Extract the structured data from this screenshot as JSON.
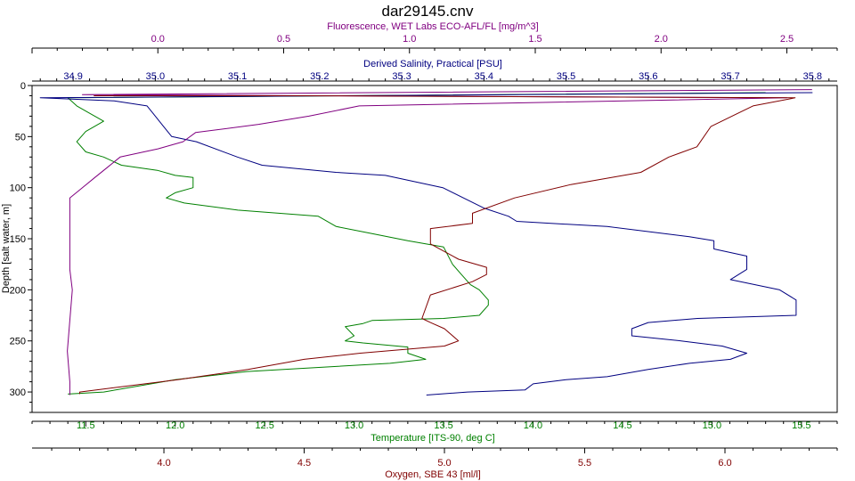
{
  "chart_data": {
    "type": "line",
    "title": "dar29145.cnv",
    "ylabel": "Depth [salt water, m]",
    "ylim": [
      0,
      320
    ],
    "yticks": [
      0,
      50,
      100,
      150,
      200,
      250,
      300
    ],
    "axes": {
      "fluorescence": {
        "label": "Fluorescence, WET Labs ECO-AFL/FL [mg/m^3]",
        "range": [
          -0.5,
          2.7
        ],
        "ticks": [
          "0.0",
          "0.5",
          "1.0",
          "1.5",
          "2.0",
          "2.5"
        ],
        "color": "#800080"
      },
      "salinity": {
        "label": "Derived Salinity, Practical [PSU]",
        "range": [
          34.85,
          35.83
        ],
        "ticks": [
          "34.9",
          "35.0",
          "35.1",
          "35.2",
          "35.3",
          "35.4",
          "35.5",
          "35.6",
          "35.7",
          "35.8"
        ],
        "color": "#000080"
      },
      "temperature": {
        "label": "Temperature [ITS-90, deg C]",
        "range": [
          11.2,
          15.7
        ],
        "ticks": [
          "11.5",
          "12.0",
          "12.5",
          "13.0",
          "13.5",
          "14.0",
          "14.5",
          "15.0",
          "15.5"
        ],
        "color": "#008000"
      },
      "oxygen": {
        "label": "Oxygen, SBE 43 [ml/l]",
        "range": [
          3.53,
          6.4
        ],
        "ticks": [
          "4.0",
          "4.5",
          "5.0",
          "5.5",
          "6.0"
        ],
        "color": "#800000"
      }
    },
    "series": [
      {
        "axis": "temperature",
        "color": "#008000",
        "points": [
          [
            15.3,
            7
          ],
          [
            11.4,
            12
          ],
          [
            11.45,
            20
          ],
          [
            11.5,
            25
          ],
          [
            11.6,
            35
          ],
          [
            11.5,
            45
          ],
          [
            11.45,
            55
          ],
          [
            11.5,
            65
          ],
          [
            11.6,
            70
          ],
          [
            11.7,
            78
          ],
          [
            11.9,
            83
          ],
          [
            12.0,
            88
          ],
          [
            12.1,
            90
          ],
          [
            12.1,
            100
          ],
          [
            12.0,
            105
          ],
          [
            11.95,
            110
          ],
          [
            12.05,
            115
          ],
          [
            12.35,
            122
          ],
          [
            12.8,
            128
          ],
          [
            12.9,
            138
          ],
          [
            13.1,
            145
          ],
          [
            13.3,
            152
          ],
          [
            13.5,
            158
          ],
          [
            13.55,
            175
          ],
          [
            13.6,
            185
          ],
          [
            13.65,
            195
          ],
          [
            13.7,
            200
          ],
          [
            13.75,
            210
          ],
          [
            13.75,
            215
          ],
          [
            13.7,
            225
          ],
          [
            13.5,
            228
          ],
          [
            13.1,
            230
          ],
          [
            13.05,
            233
          ],
          [
            12.95,
            236
          ],
          [
            13.0,
            245
          ],
          [
            12.95,
            250
          ],
          [
            13.05,
            252
          ],
          [
            13.3,
            256
          ],
          [
            13.3,
            262
          ],
          [
            13.4,
            268
          ],
          [
            13.2,
            272
          ],
          [
            12.4,
            280
          ],
          [
            12.0,
            288
          ],
          [
            11.6,
            300
          ],
          [
            11.4,
            302
          ]
        ]
      },
      {
        "axis": "salinity",
        "color": "#000080",
        "points": [
          [
            35.8,
            7
          ],
          [
            34.86,
            12
          ],
          [
            34.95,
            15
          ],
          [
            34.99,
            20
          ],
          [
            35.0,
            30
          ],
          [
            35.01,
            40
          ],
          [
            35.02,
            50
          ],
          [
            35.05,
            55
          ],
          [
            35.1,
            70
          ],
          [
            35.13,
            78
          ],
          [
            35.22,
            85
          ],
          [
            35.28,
            88
          ],
          [
            35.35,
            100
          ],
          [
            35.4,
            120
          ],
          [
            35.43,
            128
          ],
          [
            35.44,
            133
          ],
          [
            35.55,
            138
          ],
          [
            35.6,
            143
          ],
          [
            35.65,
            148
          ],
          [
            35.68,
            152
          ],
          [
            35.68,
            160
          ],
          [
            35.72,
            167
          ],
          [
            35.72,
            180
          ],
          [
            35.7,
            190
          ],
          [
            35.76,
            200
          ],
          [
            35.78,
            210
          ],
          [
            35.78,
            225
          ],
          [
            35.66,
            228
          ],
          [
            35.6,
            232
          ],
          [
            35.58,
            238
          ],
          [
            35.58,
            245
          ],
          [
            35.64,
            250
          ],
          [
            35.69,
            255
          ],
          [
            35.72,
            262
          ],
          [
            35.7,
            268
          ],
          [
            35.65,
            272
          ],
          [
            35.6,
            278
          ],
          [
            35.55,
            285
          ],
          [
            35.5,
            288
          ],
          [
            35.46,
            292
          ],
          [
            35.45,
            298
          ],
          [
            35.38,
            300
          ],
          [
            35.33,
            303
          ]
        ]
      },
      {
        "axis": "fluorescence",
        "color": "#800080",
        "points": [
          [
            2.6,
            4
          ],
          [
            -0.3,
            9
          ],
          [
            2.5,
            12
          ],
          [
            0.8,
            20
          ],
          [
            0.6,
            30
          ],
          [
            0.4,
            38
          ],
          [
            0.15,
            46
          ],
          [
            0.1,
            55
          ],
          [
            0.0,
            62
          ],
          [
            -0.15,
            70
          ],
          [
            -0.2,
            80
          ],
          [
            -0.25,
            90
          ],
          [
            -0.3,
            100
          ],
          [
            -0.35,
            110
          ],
          [
            -0.35,
            130
          ],
          [
            -0.35,
            150
          ],
          [
            -0.35,
            180
          ],
          [
            -0.34,
            200
          ],
          [
            -0.35,
            230
          ],
          [
            -0.36,
            260
          ],
          [
            -0.35,
            290
          ],
          [
            -0.35,
            303
          ]
        ]
      },
      {
        "axis": "oxygen",
        "color": "#800000",
        "points": [
          [
            3.75,
            10
          ],
          [
            4.5,
            10
          ],
          [
            6.25,
            12
          ],
          [
            6.1,
            20
          ],
          [
            5.95,
            40
          ],
          [
            5.9,
            60
          ],
          [
            5.8,
            70
          ],
          [
            5.7,
            85
          ],
          [
            5.45,
            97
          ],
          [
            5.25,
            110
          ],
          [
            5.1,
            125
          ],
          [
            5.1,
            135
          ],
          [
            4.95,
            140
          ],
          [
            4.95,
            155
          ],
          [
            5.05,
            170
          ],
          [
            5.15,
            178
          ],
          [
            5.15,
            185
          ],
          [
            5.1,
            192
          ],
          [
            4.95,
            205
          ],
          [
            4.92,
            228
          ],
          [
            4.95,
            232
          ],
          [
            5.0,
            238
          ],
          [
            5.05,
            250
          ],
          [
            5.0,
            255
          ],
          [
            4.7,
            262
          ],
          [
            4.5,
            268
          ],
          [
            4.3,
            278
          ],
          [
            4.05,
            288
          ],
          [
            3.7,
            300
          ],
          [
            3.7,
            302
          ]
        ]
      }
    ]
  }
}
